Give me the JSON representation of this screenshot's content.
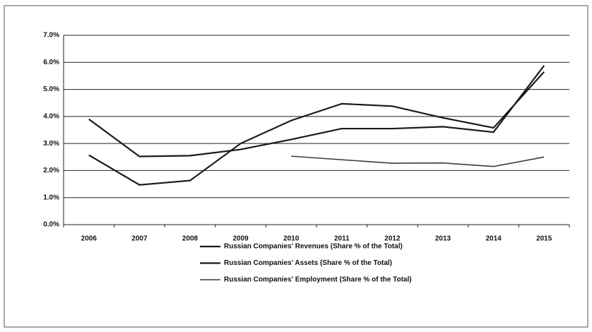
{
  "chart_data": {
    "type": "line",
    "categories": [
      "2006",
      "2007",
      "2008",
      "2009",
      "2010",
      "2011",
      "2012",
      "2013",
      "2014",
      "2015"
    ],
    "series": [
      {
        "name": "Russian Companies' Revenues (Share % of the Total)",
        "color": "#1a1a1a",
        "values": [
          3.9,
          2.52,
          2.55,
          2.78,
          3.15,
          3.55,
          3.55,
          3.62,
          3.42,
          5.88
        ]
      },
      {
        "name": "Russian Companies' Assets (Share % of the Total)",
        "color": "#1a1a1a",
        "values": [
          2.57,
          1.47,
          1.63,
          3.0,
          3.85,
          4.47,
          4.38,
          3.95,
          3.58,
          5.65
        ]
      },
      {
        "name": "Russian Companies' Employment (Share % of the Total)",
        "color": "#3a3a3a",
        "values": [
          null,
          null,
          null,
          null,
          2.53,
          2.4,
          2.27,
          2.28,
          2.15,
          2.5
        ]
      }
    ],
    "ylim": [
      0,
      7
    ],
    "yticks": [
      {
        "value": 0,
        "label": "0.0%"
      },
      {
        "value": 1,
        "label": "1.0%"
      },
      {
        "value": 2,
        "label": "2.0%"
      },
      {
        "value": 3,
        "label": "3.0%"
      },
      {
        "value": 4,
        "label": "4.0%"
      },
      {
        "value": 5,
        "label": "5.0%"
      },
      {
        "value": 6,
        "label": "6.0%"
      },
      {
        "value": 7,
        "label": "7.0%"
      }
    ],
    "grid": true,
    "legend": "bottom"
  }
}
